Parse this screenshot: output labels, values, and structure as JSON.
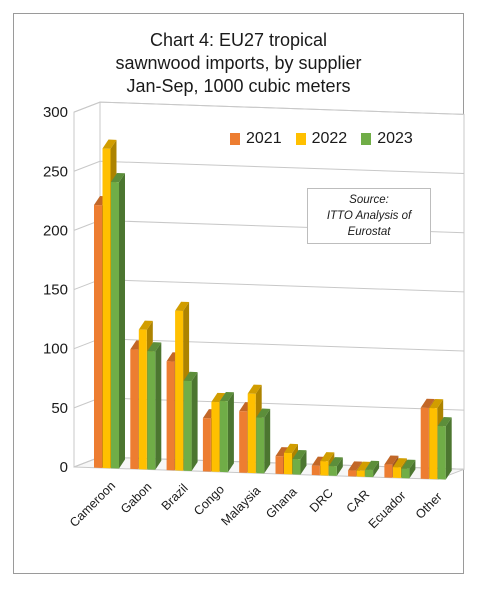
{
  "title_lines": [
    "Chart 4: EU27 tropical",
    "sawnwood imports, by supplier",
    "Jan-Sep, 1000 cubic meters"
  ],
  "source_lines": [
    "Source:",
    "ITTO Analysis of",
    "Eurostat"
  ],
  "colors": {
    "s2021": "#ed7d31",
    "s2022": "#ffc000",
    "s2023": "#70ad47"
  },
  "chart_data": {
    "type": "bar",
    "title": "Chart 4: EU27 tropical sawnwood imports, by supplier Jan-Sep, 1000 cubic meters",
    "categories": [
      "Cameroon",
      "Gabon",
      "Brazil",
      "Congo",
      "Malaysia",
      "Ghana",
      "DRC",
      "CAR",
      "Ecuador",
      "Other"
    ],
    "series": [
      {
        "name": "2021",
        "values": [
          222,
          101,
          92,
          45,
          52,
          15,
          8,
          5,
          11,
          60
        ]
      },
      {
        "name": "2022",
        "values": [
          270,
          118,
          135,
          59,
          67,
          18,
          12,
          5,
          9,
          60
        ]
      },
      {
        "name": "2023",
        "values": [
          242,
          100,
          76,
          60,
          47,
          13,
          8,
          6,
          8,
          45
        ]
      }
    ],
    "ylim": [
      0,
      300
    ],
    "yticks": [
      0,
      50,
      100,
      150,
      200,
      250,
      300
    ],
    "legend": "top-right",
    "grid": true
  }
}
